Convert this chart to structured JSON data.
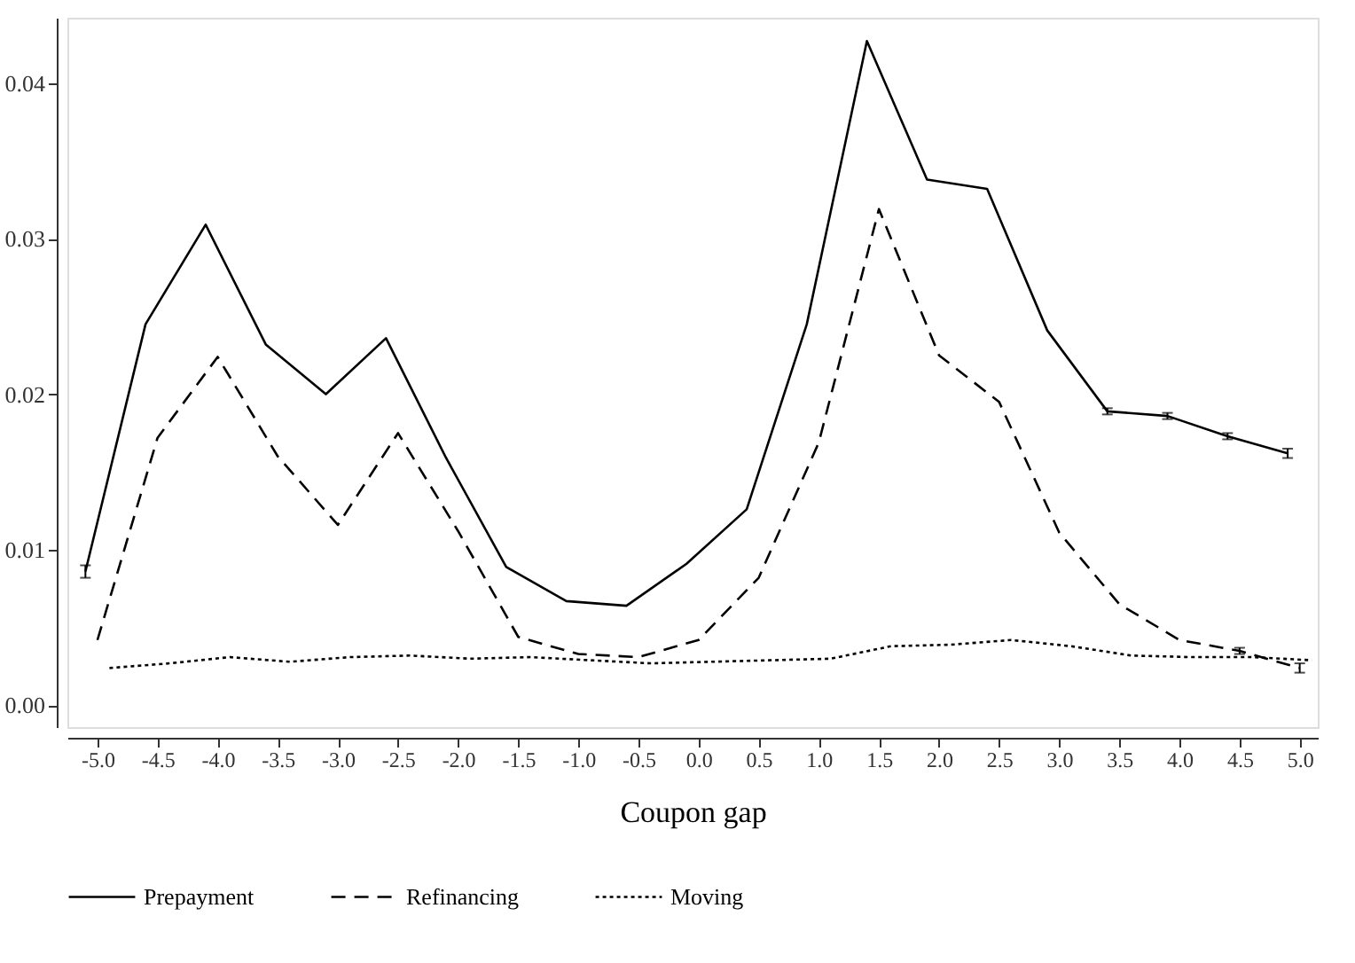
{
  "chart_data": {
    "type": "line",
    "xlabel": "Coupon gap",
    "xlim": [
      -5.25,
      5.15
    ],
    "xticks": [
      {
        "value": -5,
        "label": "-5.0"
      },
      {
        "value": -4.5,
        "label": "-4.5"
      },
      {
        "value": -4,
        "label": "-4.0"
      },
      {
        "value": -3.5,
        "label": "-3.5"
      },
      {
        "value": -3,
        "label": "-3.0"
      },
      {
        "value": -2.5,
        "label": "-2.5"
      },
      {
        "value": -2,
        "label": "-2.0"
      },
      {
        "value": -1.5,
        "label": "-1.5"
      },
      {
        "value": -1,
        "label": "-1.0"
      },
      {
        "value": -0.5,
        "label": "-0.5"
      },
      {
        "value": 0,
        "label": "0.0"
      },
      {
        "value": 0.5,
        "label": "0.5"
      },
      {
        "value": 1,
        "label": "1.0"
      },
      {
        "value": 1.5,
        "label": "1.5"
      },
      {
        "value": 2,
        "label": "2.0"
      },
      {
        "value": 2.5,
        "label": "2.5"
      },
      {
        "value": 3,
        "label": "3.0"
      },
      {
        "value": 3.5,
        "label": "3.5"
      },
      {
        "value": 4,
        "label": "4.0"
      },
      {
        "value": 4.5,
        "label": "4.5"
      },
      {
        "value": 5,
        "label": "5.0"
      }
    ],
    "ylim": [
      -0.0014,
      0.0442
    ],
    "yticks": [
      {
        "value": 0,
        "label": "0.00"
      },
      {
        "value": 0.01,
        "label": "0.01"
      },
      {
        "value": 0.02,
        "label": "0.02"
      },
      {
        "value": 0.03,
        "label": "0.03"
      },
      {
        "value": 0.04,
        "label": "0.04"
      }
    ],
    "grid": false,
    "legend": "bottom",
    "marker": "none",
    "series": [
      {
        "name": "Prepayment",
        "color": "#000000",
        "line_style": "solid",
        "x": [
          -5.1,
          -4.6,
          -4.1,
          -3.6,
          -3.1,
          -2.6,
          -2.1,
          -1.6,
          -1.1,
          -0.6,
          -0.1,
          0.4,
          0.9,
          1.4,
          1.9,
          2.4,
          2.9,
          3.4,
          3.9,
          4.4,
          4.9
        ],
        "values": [
          0.0086,
          0.0245,
          0.0309,
          0.0232,
          0.02,
          0.0236,
          0.0159,
          0.0089,
          0.0067,
          0.0064,
          0.0091,
          0.0126,
          0.0245,
          0.0427,
          0.0338,
          0.0332,
          0.0241,
          0.0189,
          0.0186,
          0.0173,
          0.0162
        ],
        "errors": [
          0.0004,
          null,
          null,
          null,
          null,
          null,
          null,
          null,
          null,
          null,
          null,
          null,
          null,
          null,
          null,
          null,
          null,
          0.0002,
          0.0002,
          0.0002,
          0.0003
        ]
      },
      {
        "name": "Refinancing",
        "color": "#000000",
        "line_style": "dashed",
        "x": [
          -5.0,
          -4.5,
          -4.0,
          -3.5,
          -3.0,
          -2.5,
          -2.0,
          -1.5,
          -1.0,
          -0.5,
          0.0,
          0.5,
          1.0,
          1.5,
          2.0,
          2.5,
          3.0,
          3.5,
          4.0,
          4.5,
          5.0
        ],
        "values": [
          0.0042,
          0.0172,
          0.0224,
          0.016,
          0.0116,
          0.0175,
          0.0112,
          0.0044,
          0.0033,
          0.0031,
          0.0042,
          0.0082,
          0.0169,
          0.0319,
          0.0225,
          0.0195,
          0.0111,
          0.0065,
          0.0042,
          0.0035,
          0.0024
        ],
        "errors": [
          null,
          null,
          null,
          null,
          null,
          null,
          null,
          null,
          null,
          null,
          null,
          null,
          null,
          null,
          null,
          null,
          null,
          null,
          null,
          0.0002,
          0.0003
        ]
      },
      {
        "name": "Moving",
        "color": "#000000",
        "line_style": "dotted",
        "x": [
          -4.9,
          -4.4,
          -3.9,
          -3.4,
          -2.9,
          -2.4,
          -1.9,
          -1.4,
          -0.9,
          -0.4,
          0.1,
          0.6,
          1.1,
          1.6,
          2.1,
          2.6,
          3.1,
          3.6,
          4.1,
          4.6,
          5.1
        ],
        "values": [
          0.0024,
          0.0027,
          0.0031,
          0.0028,
          0.0031,
          0.0032,
          0.003,
          0.0031,
          0.0029,
          0.0027,
          0.0028,
          0.0029,
          0.003,
          0.0038,
          0.0039,
          0.0042,
          0.0038,
          0.0032,
          0.0031,
          0.0031,
          0.0029
        ]
      }
    ]
  }
}
